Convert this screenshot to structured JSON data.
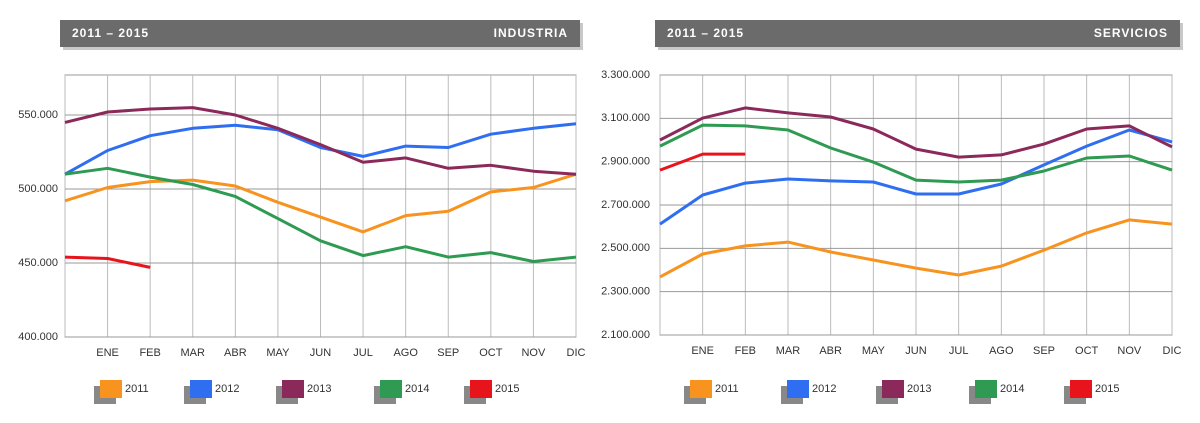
{
  "chart_data": [
    {
      "type": "line",
      "subtitle": "2011 – 2015",
      "title": "INDUSTRIA",
      "categories": [
        null,
        "ENE",
        "FEB",
        "MAR",
        "ABR",
        "MAY",
        "JUN",
        "JUL",
        "AGO",
        "SEP",
        "OCT",
        "NOV",
        "DIC"
      ],
      "ylim": [
        400000,
        577000
      ],
      "yticks": [
        {
          "value": 400000,
          "label": "400.000"
        },
        {
          "value": 450000,
          "label": "450.000"
        },
        {
          "value": 500000,
          "label": "500.000"
        },
        {
          "value": 550000,
          "label": "550.000"
        }
      ],
      "grid": true,
      "series": [
        {
          "name": "2011",
          "color": "#f7931e",
          "values": [
            492000,
            501000,
            505000,
            506000,
            502000,
            491000,
            481000,
            471000,
            482000,
            485000,
            498000,
            501000,
            510000
          ]
        },
        {
          "name": "2012",
          "color": "#2f6ef0",
          "values": [
            510000,
            526000,
            536000,
            541000,
            543000,
            540000,
            528000,
            522000,
            529000,
            528000,
            537000,
            541000,
            544000
          ]
        },
        {
          "name": "2013",
          "color": "#8b2a5a",
          "values": [
            545000,
            552000,
            554000,
            555000,
            550000,
            541000,
            530000,
            518000,
            521000,
            514000,
            516000,
            512000,
            510000
          ]
        },
        {
          "name": "2014",
          "color": "#2e9a52",
          "values": [
            510000,
            514000,
            508000,
            503000,
            495000,
            480000,
            465000,
            455000,
            461000,
            454000,
            457000,
            451000,
            454000
          ]
        },
        {
          "name": "2015",
          "color": "#e8141b",
          "values": [
            454000,
            453000,
            447000,
            null,
            null,
            null,
            null,
            null,
            null,
            null,
            null,
            null,
            null
          ]
        }
      ]
    },
    {
      "type": "line",
      "subtitle": "2011 – 2015",
      "title": "SERVICIOS",
      "categories": [
        null,
        "ENE",
        "FEB",
        "MAR",
        "ABR",
        "MAY",
        "JUN",
        "JUL",
        "AGO",
        "SEP",
        "OCT",
        "NOV",
        "DIC"
      ],
      "ylim": [
        2100000,
        3300000
      ],
      "yticks": [
        {
          "value": 2100000,
          "label": "2.100.000"
        },
        {
          "value": 2300000,
          "label": "2.300.000"
        },
        {
          "value": 2500000,
          "label": "2.500.000"
        },
        {
          "value": 2700000,
          "label": "2.700.000"
        },
        {
          "value": 2900000,
          "label": "2.900.000"
        },
        {
          "value": 3100000,
          "label": "3.100.000"
        },
        {
          "value": 3300000,
          "label": "3.300.000"
        }
      ],
      "grid": true,
      "series": [
        {
          "name": "2011",
          "color": "#f7931e",
          "values": [
            2368000,
            2474000,
            2511000,
            2529000,
            2483000,
            2446000,
            2409000,
            2377000,
            2418000,
            2492000,
            2571000,
            2631000,
            2612000
          ]
        },
        {
          "name": "2012",
          "color": "#2f6ef0",
          "values": [
            2612000,
            2746000,
            2801000,
            2820000,
            2811000,
            2806000,
            2751000,
            2751000,
            2797000,
            2885000,
            2972000,
            3046000,
            2991000
          ]
        },
        {
          "name": "2013",
          "color": "#8b2a5a",
          "values": [
            3000000,
            3101000,
            3148000,
            3125000,
            3106000,
            3051000,
            2958000,
            2921000,
            2931000,
            2981000,
            3051000,
            3065000,
            2968000
          ]
        },
        {
          "name": "2014",
          "color": "#2e9a52",
          "values": [
            2972000,
            3069000,
            3065000,
            3046000,
            2963000,
            2898000,
            2815000,
            2806000,
            2815000,
            2857000,
            2917000,
            2926000,
            2861000
          ]
        },
        {
          "name": "2015",
          "color": "#e8141b",
          "values": [
            2861000,
            2935000,
            2935000,
            null,
            null,
            null,
            null,
            null,
            null,
            null,
            null,
            null,
            null
          ]
        }
      ]
    }
  ]
}
